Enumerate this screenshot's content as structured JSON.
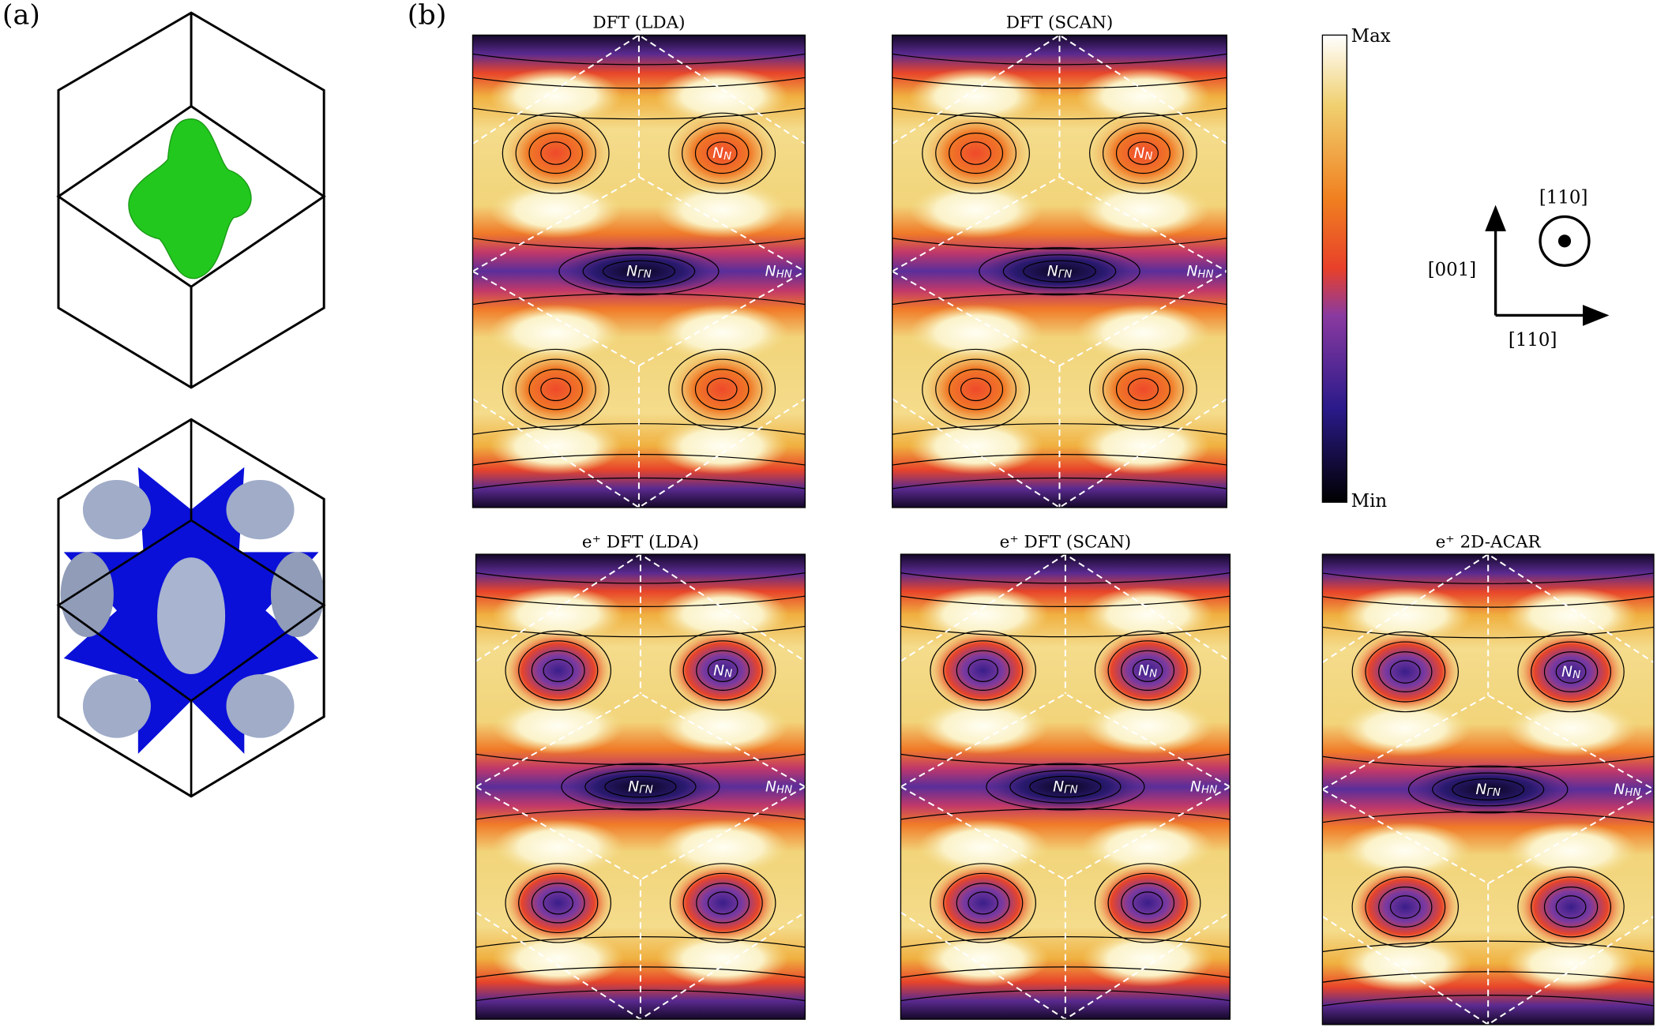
{
  "panel_a": {
    "label": "(a)"
  },
  "panel_b": {
    "label": "(b)",
    "maps": [
      {
        "title": "DFT (LDA)",
        "labels": [
          {
            "base": "N",
            "sub": "N"
          },
          {
            "base": "N",
            "sub": "ΓN"
          },
          {
            "base": "N",
            "sub": "HN"
          }
        ]
      },
      {
        "title": "DFT (SCAN)",
        "labels": [
          {
            "base": "N",
            "sub": "N"
          },
          {
            "base": "N",
            "sub": "ΓN"
          },
          {
            "base": "N",
            "sub": "HN"
          }
        ]
      },
      {
        "title": "e⁺ DFT (LDA)",
        "labels": [
          {
            "base": "N",
            "sub": "N"
          },
          {
            "base": "N",
            "sub": "ΓN"
          },
          {
            "base": "N",
            "sub": "HN"
          }
        ]
      },
      {
        "title": "e⁺ DFT (SCAN)",
        "labels": [
          {
            "base": "N",
            "sub": "N"
          },
          {
            "base": "N",
            "sub": "ΓN"
          },
          {
            "base": "N",
            "sub": "HN"
          }
        ]
      },
      {
        "title": "e⁺ 2D-ACAR",
        "labels": [
          {
            "base": "N",
            "sub": "N"
          },
          {
            "base": "N",
            "sub": "ΓN"
          },
          {
            "base": "N",
            "sub": "HN"
          }
        ]
      }
    ],
    "colorbar": {
      "max": "Max",
      "min": "Min"
    },
    "orientation": {
      "out_of_plane": "[110]",
      "vertical": "[001]",
      "horizontal": "[110]"
    }
  }
}
